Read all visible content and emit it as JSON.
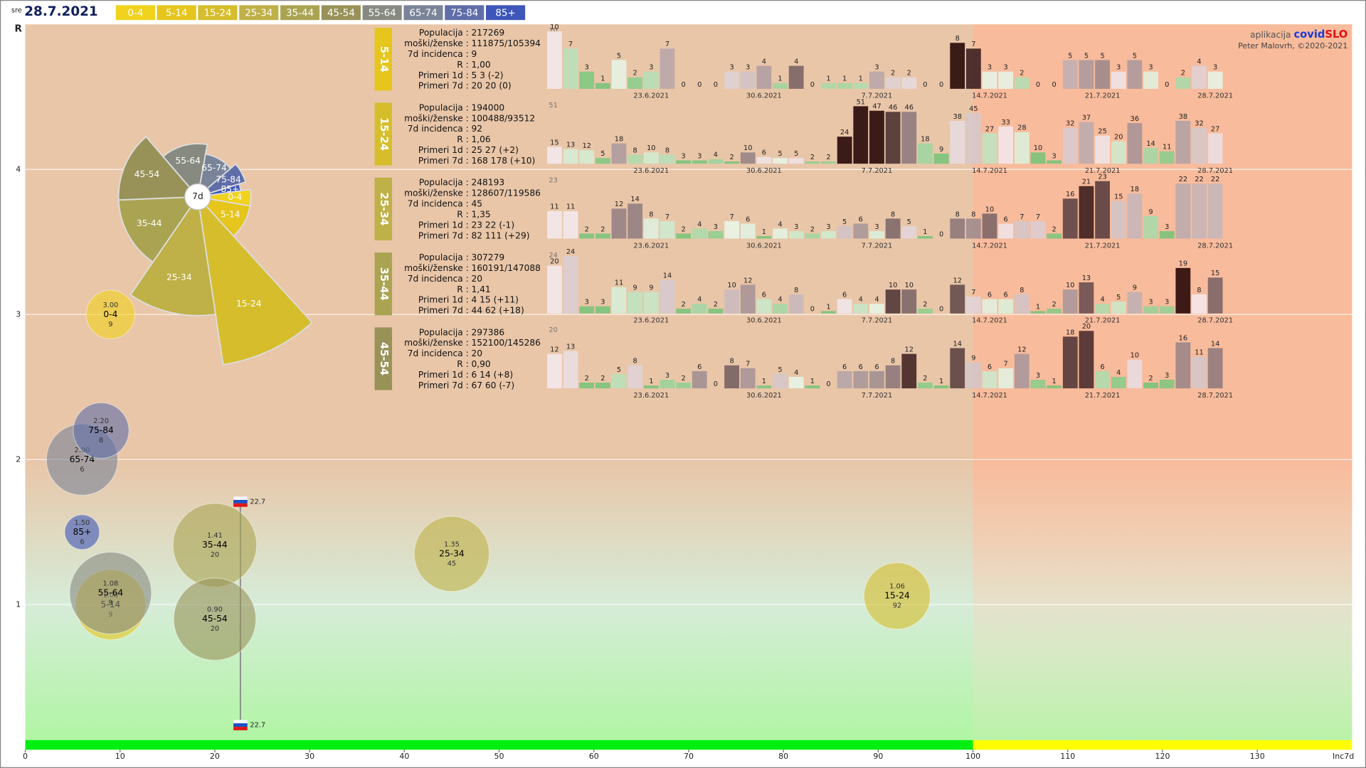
{
  "header": {
    "day": "sre",
    "date": "28.7.2021",
    "app_label": "aplikacija",
    "app_name_1": "covid",
    "app_name_2": "SLO",
    "credit": "Peter Malovrh, ©2020-2021"
  },
  "legend": [
    {
      "name": "0-4",
      "color": "#f1d21c"
    },
    {
      "name": "5-14",
      "color": "#e6c51c"
    },
    {
      "name": "15-24",
      "color": "#d6bd2c"
    },
    {
      "name": "25-34",
      "color": "#bfb047"
    },
    {
      "name": "35-44",
      "color": "#aaa452"
    },
    {
      "name": "45-54",
      "color": "#989259"
    },
    {
      "name": "55-64",
      "color": "#878a80"
    },
    {
      "name": "65-74",
      "color": "#7a8498"
    },
    {
      "name": "75-84",
      "color": "#5f6ea9"
    },
    {
      "name": "85+",
      "color": "#3e56b9"
    }
  ],
  "chart_data": [
    {
      "type": "bubble",
      "x_label": "Inc7d",
      "y_label": "R",
      "xlim": [
        0,
        140
      ],
      "ylim": [
        0,
        5
      ],
      "xticks": [
        0,
        10,
        20,
        30,
        40,
        50,
        60,
        70,
        80,
        90,
        100,
        110,
        120,
        130
      ],
      "yticks": [
        1,
        2,
        3,
        4
      ],
      "inc_threshold": 100,
      "points": [
        {
          "name": "0-4",
          "x": 9,
          "y": 3,
          "y_label": "3.00",
          "size": 104
        },
        {
          "name": "5-14",
          "x": 9,
          "y": 1,
          "y_label": "1.00",
          "size": 217
        },
        {
          "name": "15-24",
          "x": 92,
          "y": 1.06,
          "y_label": "1.06",
          "size": 194
        },
        {
          "name": "25-34",
          "x": 45,
          "y": 1.35,
          "y_label": "1.35",
          "size": 248
        },
        {
          "name": "35-44",
          "x": 20,
          "y": 1.41,
          "y_label": "1.41",
          "size": 307
        },
        {
          "name": "45-54",
          "x": 20,
          "y": 0.9,
          "y_label": "0.90",
          "size": 297
        },
        {
          "name": "55-64",
          "x": 9,
          "y": 1.08,
          "y_label": "1.08",
          "size": 294
        },
        {
          "name": "65-74",
          "x": 6,
          "y": 2,
          "y_label": "2.00",
          "size": 224
        },
        {
          "name": "75-84",
          "x": 8,
          "y": 2.2,
          "y_label": "2.20",
          "size": 136
        },
        {
          "name": "85+",
          "x": 6,
          "y": 1.5,
          "y_label": "1.50",
          "size": 53
        }
      ],
      "overall": {
        "x": 22.7,
        "y_range": [
          0.17,
          1.71
        ]
      }
    },
    {
      "type": "rose",
      "center_label": "7d",
      "categories": [
        "0-4",
        "5-14",
        "15-24",
        "25-34",
        "35-44",
        "45-54",
        "55-64",
        "65-74",
        "75-84",
        "85+"
      ],
      "values": [
        9,
        9,
        92,
        45,
        20,
        20,
        9,
        6,
        8,
        6
      ]
    },
    {
      "type": "bar",
      "group": "5-14",
      "color": "#e6c51c",
      "ymax": 10,
      "info": [
        {
          "label": "Populacija :",
          "value": 217269
        },
        {
          "label": "moški/ženske :",
          "value": "111875/105394"
        },
        {
          "label": "7d incidenca :",
          "value": 9
        },
        {
          "label": "R :",
          "value": "1,00"
        },
        {
          "label": "Primeri 1d :",
          "value": "5 3 (-2)"
        },
        {
          "label": "Primeri 7d :",
          "value": "20 20 (0)"
        }
      ],
      "categories": [
        null,
        null,
        null,
        null,
        null,
        null,
        "23.6.2021",
        null,
        null,
        null,
        null,
        null,
        null,
        "30.6.2021",
        null,
        null,
        null,
        null,
        null,
        null,
        "7.7.2021",
        null,
        null,
        null,
        null,
        null,
        null,
        "14.7.2021",
        null,
        null,
        null,
        null,
        null,
        null,
        "21.7.2021",
        null,
        null,
        null,
        null,
        null,
        null,
        "28.7.2021"
      ],
      "values": [
        10,
        7,
        3,
        1,
        5,
        2,
        3,
        7,
        0,
        0,
        0,
        3,
        3,
        4,
        1,
        4,
        0,
        1,
        1,
        1,
        3,
        2,
        2,
        0,
        0,
        8,
        7,
        3,
        3,
        2,
        0,
        0,
        5,
        5,
        5,
        3,
        5,
        3,
        0,
        2,
        4,
        3
      ]
    },
    {
      "type": "bar",
      "group": "15-24",
      "color": "#d6bd2c",
      "ymax": 51,
      "info": [
        {
          "label": "Populacija :",
          "value": 194000
        },
        {
          "label": "moški/ženske :",
          "value": "100488/93512"
        },
        {
          "label": "7d incidenca :",
          "value": 92
        },
        {
          "label": "R :",
          "value": "1,06"
        },
        {
          "label": "Primeri 1d :",
          "value": "25 27 (+2)"
        },
        {
          "label": "Primeri 7d :",
          "value": "168 178 (+10)"
        }
      ],
      "categories": [
        null,
        null,
        null,
        null,
        null,
        null,
        "23.6.2021",
        null,
        null,
        null,
        null,
        null,
        null,
        "30.6.2021",
        null,
        null,
        null,
        null,
        null,
        null,
        "7.7.2021",
        null,
        null,
        null,
        null,
        null,
        null,
        "14.7.2021",
        null,
        null,
        null,
        null,
        null,
        null,
        "21.7.2021",
        null,
        null,
        null,
        null,
        null,
        null,
        "28.7.2021"
      ],
      "values": [
        15,
        13,
        12,
        5,
        18,
        8,
        10,
        8,
        3,
        3,
        4,
        2,
        10,
        6,
        5,
        5,
        2,
        2,
        24,
        51,
        47,
        46,
        46,
        18,
        9,
        38,
        45,
        27,
        33,
        28,
        10,
        3,
        32,
        37,
        25,
        20,
        36,
        14,
        11,
        38,
        32,
        27
      ]
    },
    {
      "type": "bar",
      "group": "25-34",
      "color": "#bfb047",
      "ymax": 23,
      "info": [
        {
          "label": "Populacija :",
          "value": 248193
        },
        {
          "label": "moški/ženske :",
          "value": "128607/119586"
        },
        {
          "label": "7d incidenca :",
          "value": 45
        },
        {
          "label": "R :",
          "value": "1,35"
        },
        {
          "label": "Primeri 1d :",
          "value": "23 22 (-1)"
        },
        {
          "label": "Primeri 7d :",
          "value": "82 111 (+29)"
        }
      ],
      "categories": [
        null,
        null,
        null,
        null,
        null,
        null,
        "23.6.2021",
        null,
        null,
        null,
        null,
        null,
        null,
        "30.6.2021",
        null,
        null,
        null,
        null,
        null,
        null,
        "7.7.2021",
        null,
        null,
        null,
        null,
        null,
        null,
        "14.7.2021",
        null,
        null,
        null,
        null,
        null,
        null,
        "21.7.2021",
        null,
        null,
        null,
        null,
        null,
        null,
        "28.7.2021"
      ],
      "values": [
        11,
        11,
        2,
        2,
        12,
        14,
        8,
        7,
        2,
        4,
        3,
        7,
        6,
        1,
        4,
        3,
        2,
        3,
        5,
        6,
        3,
        8,
        5,
        1,
        0,
        8,
        8,
        10,
        6,
        7,
        7,
        2,
        16,
        21,
        23,
        15,
        18,
        9,
        3,
        22,
        22,
        22
      ]
    },
    {
      "type": "bar",
      "group": "35-44",
      "color": "#aaa452",
      "ymax": 24,
      "info": [
        {
          "label": "Populacija :",
          "value": 307279
        },
        {
          "label": "moški/ženske :",
          "value": "160191/147088"
        },
        {
          "label": "7d incidenca :",
          "value": 20
        },
        {
          "label": "R :",
          "value": "1,41"
        },
        {
          "label": "Primeri 1d :",
          "value": "4 15 (+11)"
        },
        {
          "label": "Primeri 7d :",
          "value": "44 62 (+18)"
        }
      ],
      "categories": [
        null,
        null,
        null,
        null,
        null,
        null,
        "23.6.2021",
        null,
        null,
        null,
        null,
        null,
        null,
        "30.6.2021",
        null,
        null,
        null,
        null,
        null,
        null,
        "7.7.2021",
        null,
        null,
        null,
        null,
        null,
        null,
        "14.7.2021",
        null,
        null,
        null,
        null,
        null,
        null,
        "21.7.2021",
        null,
        null,
        null,
        null,
        null,
        null,
        "28.7.2021"
      ],
      "values": [
        20,
        24,
        3,
        3,
        11,
        9,
        9,
        14,
        2,
        4,
        2,
        10,
        12,
        6,
        4,
        8,
        0,
        1,
        6,
        4,
        4,
        10,
        10,
        2,
        0,
        12,
        7,
        6,
        6,
        8,
        1,
        2,
        10,
        13,
        4,
        5,
        9,
        3,
        3,
        19,
        8,
        15
      ]
    },
    {
      "type": "bar",
      "group": "45-54",
      "color": "#989259",
      "ymax": 20,
      "info": [
        {
          "label": "Populacija :",
          "value": 297386
        },
        {
          "label": "moški/ženske :",
          "value": "152100/145286"
        },
        {
          "label": "7d incidenca :",
          "value": 20
        },
        {
          "label": "R :",
          "value": "0,90"
        },
        {
          "label": "Primeri 1d :",
          "value": "6 14 (+8)"
        },
        {
          "label": "Primeri 7d :",
          "value": "67 60 (-7)"
        }
      ],
      "categories": [
        null,
        null,
        null,
        null,
        null,
        null,
        "23.6.2021",
        null,
        null,
        null,
        null,
        null,
        null,
        "30.6.2021",
        null,
        null,
        null,
        null,
        null,
        null,
        "7.7.2021",
        null,
        null,
        null,
        null,
        null,
        null,
        "14.7.2021",
        null,
        null,
        null,
        null,
        null,
        null,
        "21.7.2021",
        null,
        null,
        null,
        null,
        null,
        null,
        "28.7.2021"
      ],
      "values": [
        12,
        13,
        2,
        2,
        5,
        8,
        1,
        3,
        2,
        6,
        0,
        8,
        7,
        1,
        5,
        4,
        1,
        0,
        6,
        6,
        6,
        8,
        12,
        2,
        1,
        14,
        9,
        6,
        7,
        12,
        3,
        1,
        18,
        20,
        6,
        4,
        10,
        2,
        3,
        16,
        11,
        14
      ]
    }
  ]
}
